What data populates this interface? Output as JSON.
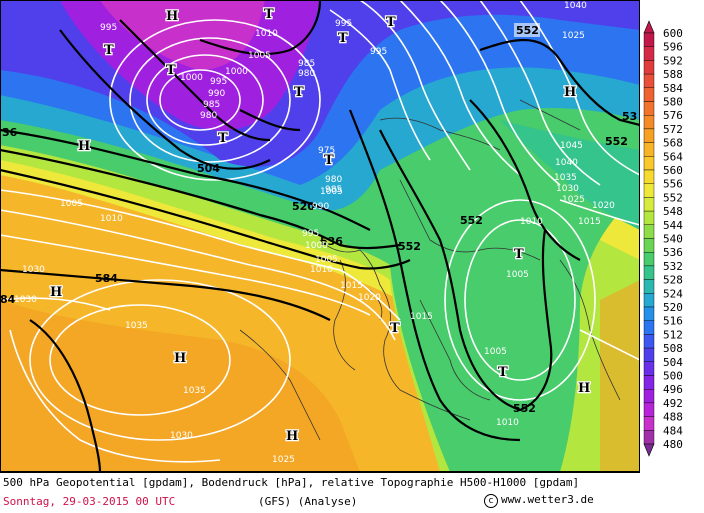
{
  "map": {
    "geopotential_labels": [
      {
        "id": "g1",
        "text": "552"
      },
      {
        "id": "g2",
        "text": "53"
      },
      {
        "id": "g3",
        "text": "552"
      },
      {
        "id": "g4",
        "text": "504"
      },
      {
        "id": "g5",
        "text": "520"
      },
      {
        "id": "g6",
        "text": "536"
      },
      {
        "id": "g7",
        "text": "552"
      },
      {
        "id": "g8",
        "text": "552"
      },
      {
        "id": "g9",
        "text": "584"
      },
      {
        "id": "g10",
        "text": "552"
      },
      {
        "id": "g11",
        "text": "36"
      },
      {
        "id": "g12",
        "text": "84"
      }
    ],
    "pressure_labels": [
      {
        "id": "p1",
        "text": "995"
      },
      {
        "id": "p2",
        "text": "1010"
      },
      {
        "id": "p3",
        "text": "995"
      },
      {
        "id": "p4",
        "text": "995"
      },
      {
        "id": "p5",
        "text": "1000"
      },
      {
        "id": "p6",
        "text": "1005"
      },
      {
        "id": "p7",
        "text": "985"
      },
      {
        "id": "p8",
        "text": "980"
      },
      {
        "id": "p9",
        "text": "990"
      },
      {
        "id": "p10",
        "text": "985"
      },
      {
        "id": "p11",
        "text": "980"
      },
      {
        "id": "p12",
        "text": "995"
      },
      {
        "id": "p13",
        "text": "1000"
      },
      {
        "id": "p14",
        "text": "975"
      },
      {
        "id": "p15",
        "text": "980"
      },
      {
        "id": "p16",
        "text": "985"
      },
      {
        "id": "p17",
        "text": "990"
      },
      {
        "id": "p18",
        "text": "1005"
      },
      {
        "id": "p19",
        "text": "1010"
      },
      {
        "id": "p20",
        "text": "995"
      },
      {
        "id": "p21",
        "text": "1000"
      },
      {
        "id": "p22",
        "text": "1005"
      },
      {
        "id": "p23",
        "text": "1010"
      },
      {
        "id": "p24",
        "text": "1015"
      },
      {
        "id": "p25",
        "text": "1020"
      },
      {
        "id": "p26",
        "text": "1015"
      },
      {
        "id": "p27",
        "text": "1030"
      },
      {
        "id": "p28",
        "text": "1030"
      },
      {
        "id": "p29",
        "text": "1035"
      },
      {
        "id": "p30",
        "text": "1035"
      },
      {
        "id": "p31",
        "text": "1030"
      },
      {
        "id": "p32",
        "text": "1025"
      },
      {
        "id": "p33",
        "text": "1010"
      },
      {
        "id": "p34",
        "text": "1005"
      },
      {
        "id": "p35",
        "text": "1005"
      },
      {
        "id": "p36",
        "text": "1010"
      },
      {
        "id": "p37",
        "text": "1015"
      },
      {
        "id": "p38",
        "text": "1020"
      },
      {
        "id": "p39",
        "text": "1025"
      },
      {
        "id": "p40",
        "text": "1030"
      },
      {
        "id": "p41",
        "text": "1035"
      },
      {
        "id": "p42",
        "text": "1040"
      },
      {
        "id": "p43",
        "text": "1045"
      },
      {
        "id": "p44",
        "text": "1025"
      },
      {
        "id": "p45",
        "text": "1040"
      },
      {
        "id": "p46",
        "text": "1005"
      }
    ],
    "pressure_centers": [
      {
        "id": "c1",
        "text": "H"
      },
      {
        "id": "c2",
        "text": "T"
      },
      {
        "id": "c3",
        "text": "T"
      },
      {
        "id": "c4",
        "text": "T"
      },
      {
        "id": "c5",
        "text": "T"
      },
      {
        "id": "c6",
        "text": "T"
      },
      {
        "id": "c7",
        "text": "T"
      },
      {
        "id": "c8",
        "text": "T"
      },
      {
        "id": "c9",
        "text": "H"
      },
      {
        "id": "c10",
        "text": "H"
      },
      {
        "id": "c11",
        "text": "H"
      },
      {
        "id": "c12",
        "text": "H"
      },
      {
        "id": "c13",
        "text": "T"
      },
      {
        "id": "c14",
        "text": "T"
      },
      {
        "id": "c15",
        "text": "T"
      },
      {
        "id": "c16",
        "text": "H"
      },
      {
        "id": "c17",
        "text": "H"
      },
      {
        "id": "c18",
        "text": "T"
      }
    ]
  },
  "legend": {
    "values": [
      "600",
      "596",
      "592",
      "588",
      "584",
      "580",
      "576",
      "572",
      "568",
      "564",
      "560",
      "556",
      "552",
      "548",
      "544",
      "540",
      "536",
      "532",
      "528",
      "524",
      "520",
      "516",
      "512",
      "508",
      "504",
      "500",
      "496",
      "492",
      "488",
      "484",
      "480"
    ],
    "colors": [
      "#c0184a",
      "#d42a4a",
      "#e03c3c",
      "#e8503a",
      "#ee6232",
      "#f2742c",
      "#f48a28",
      "#f6a024",
      "#f8b428",
      "#f8c82c",
      "#f6da30",
      "#eee83a",
      "#d6ec3c",
      "#b4e640",
      "#8edc48",
      "#6ad454",
      "#48cc6c",
      "#34c48c",
      "#2ab8b0",
      "#26a8d0",
      "#2490e8",
      "#2c74f0",
      "#3c58f0",
      "#5040ec",
      "#6a30e8",
      "#8424e4",
      "#a020e0",
      "#b824d8",
      "#c830cc",
      "#a030a8",
      "#7a2a90"
    ]
  },
  "caption": {
    "line1": "500 hPa Geopotential [gpdam], Bodendruck [hPa], relative Topographie H500-H1000 [gpdam]",
    "date": "Sonntag, 29-03-2015  00 UTC",
    "model": "(GFS)  (Analyse)",
    "copyright_symbol": "c",
    "copyright": "www.wetter3.de"
  }
}
